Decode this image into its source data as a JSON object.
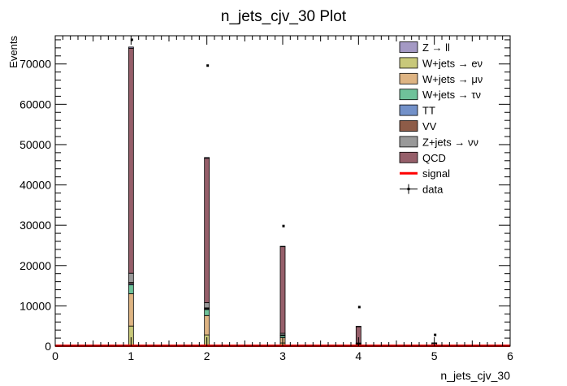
{
  "chart_data": {
    "type": "bar",
    "title": "n_jets_cjv_30 Plot",
    "xlabel": "n_jets_cjv_30",
    "ylabel": "Events",
    "xlim": [
      0,
      6
    ],
    "ylim": [
      0,
      77000
    ],
    "x_ticks": [
      0,
      1,
      2,
      3,
      4,
      5,
      6
    ],
    "y_ticks": [
      0,
      10000,
      20000,
      30000,
      40000,
      50000,
      60000,
      70000
    ],
    "bin_centers": [
      1,
      2,
      3,
      4,
      5
    ],
    "stack_order": [
      "W+jets → ev",
      "W+jets → μν",
      "W+jets → τν",
      "TT",
      "VV",
      "Z+jets → νν",
      "QCD",
      "Z → ll"
    ],
    "series": [
      {
        "name": "Z → ll",
        "color": "#a499c4",
        "values": [
          300,
          200,
          80,
          30,
          10
        ]
      },
      {
        "name": "W+jets → eν",
        "color": "#c8c87a",
        "values": [
          5000,
          2800,
          800,
          200,
          60
        ]
      },
      {
        "name": "W+jets → μν",
        "color": "#deb483",
        "values": [
          8000,
          4800,
          1300,
          300,
          80
        ]
      },
      {
        "name": "W+jets → τν",
        "color": "#6fc29a",
        "values": [
          2200,
          1500,
          500,
          120,
          30
        ]
      },
      {
        "name": "TT",
        "color": "#7391c9",
        "values": [
          300,
          200,
          100,
          40,
          10
        ]
      },
      {
        "name": "VV",
        "color": "#8e5c48",
        "values": [
          300,
          200,
          100,
          40,
          10
        ]
      },
      {
        "name": "Z+jets → νν",
        "color": "#999999",
        "values": [
          2300,
          1300,
          400,
          100,
          30
        ]
      },
      {
        "name": "QCD",
        "color": "#965f6a",
        "values": [
          55800,
          35800,
          21500,
          4100,
          600
        ]
      }
    ],
    "signal": {
      "name": "signal",
      "color": "#ff0000",
      "values": [
        0,
        0,
        0,
        0,
        0,
        0
      ]
    },
    "data": {
      "name": "data",
      "x": [
        1,
        2,
        3,
        4,
        5
      ],
      "y": [
        76000,
        69600,
        29800,
        9700,
        2800
      ]
    },
    "legend": {
      "placement": "top-right",
      "entries": [
        {
          "label": "Z → ll",
          "kind": "box",
          "color": "#a499c4"
        },
        {
          "label": "W+jets → eν",
          "kind": "box",
          "color": "#c8c87a"
        },
        {
          "label": "W+jets → μν",
          "kind": "box",
          "color": "#deb483"
        },
        {
          "label": "W+jets → τν",
          "kind": "box",
          "color": "#6fc29a"
        },
        {
          "label": "TT",
          "kind": "box",
          "color": "#7391c9"
        },
        {
          "label": "VV",
          "kind": "box",
          "color": "#8e5c48"
        },
        {
          "label": "Z+jets → νν",
          "kind": "box",
          "color": "#999999"
        },
        {
          "label": "QCD",
          "kind": "box",
          "color": "#965f6a"
        },
        {
          "label": "signal",
          "kind": "line",
          "color": "#ff0000"
        },
        {
          "label": "data",
          "kind": "marker",
          "color": "#000000"
        }
      ]
    }
  }
}
